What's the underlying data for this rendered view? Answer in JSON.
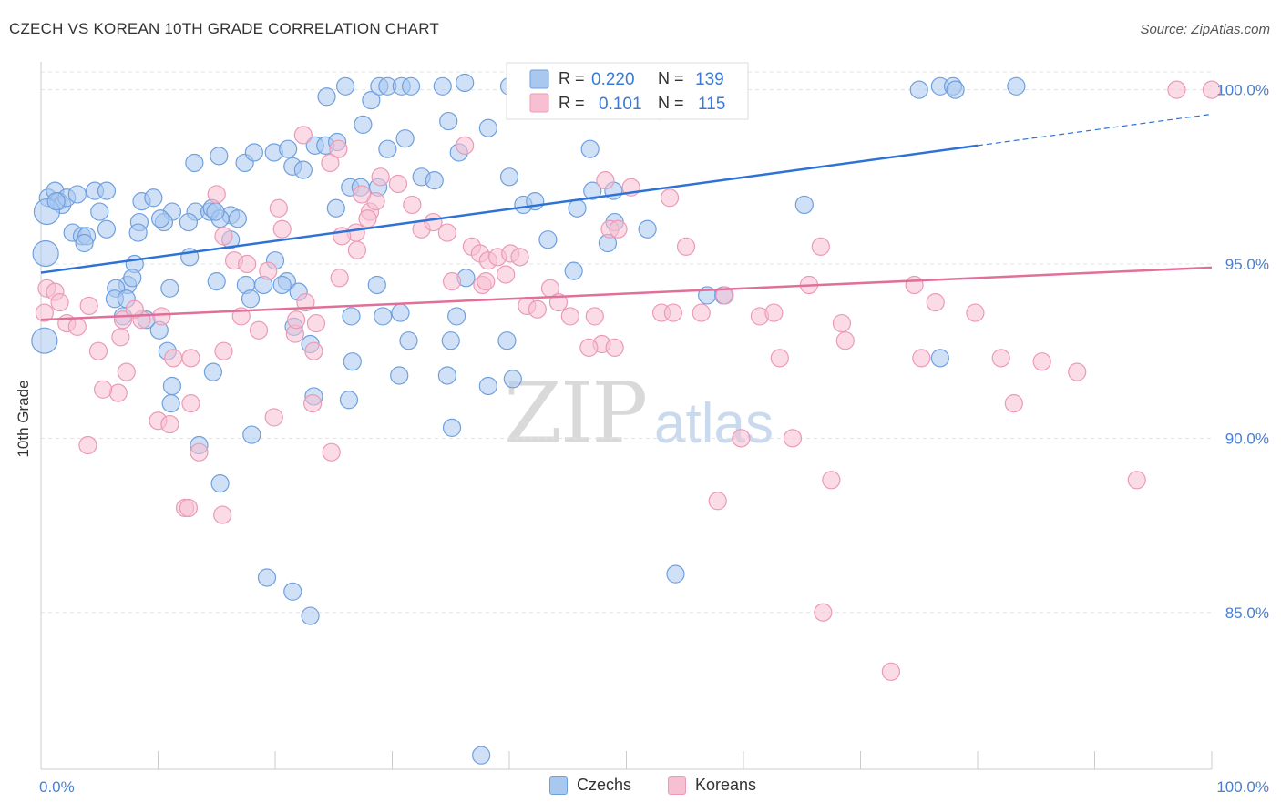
{
  "title": "CZECH VS KOREAN 10TH GRADE CORRELATION CHART",
  "source": "Source: ZipAtlas.com",
  "watermark": {
    "zip": "ZIP",
    "atlas": "atlas"
  },
  "legend": {
    "r_label": "R =",
    "n_label": "N =",
    "czech_r": "0.220",
    "czech_n": "139",
    "korean_r": "0.101",
    "korean_n": "115"
  },
  "bottom_legend": {
    "czechs": "Czechs",
    "koreans": "Koreans"
  },
  "colors": {
    "czech_fill": "#a9c8f0",
    "czech_stroke": "#6fa0de",
    "czech_line": "#2f72d6",
    "korean_fill": "#f7c0d2",
    "korean_stroke": "#eb9ab6",
    "korean_line": "#e0709a",
    "tick_text": "#4a7fcf",
    "grid": "#e3e3e3"
  },
  "chart_data": {
    "type": "scatter",
    "title": "CZECH VS KOREAN 10TH GRADE CORRELATION CHART",
    "xlabel": "",
    "ylabel": "10th Grade",
    "xlim": [
      0,
      100
    ],
    "ylim": [
      80.5,
      100.8
    ],
    "x_tick_labels": [
      "0.0%",
      "100.0%"
    ],
    "y_ticks": [
      85,
      90,
      95,
      100
    ],
    "y_tick_labels": [
      "85.0%",
      "90.0%",
      "95.0%",
      "100.0%"
    ],
    "grid": true,
    "legend_position": "top-center",
    "series": [
      {
        "name": "Czechs",
        "r": 0.22,
        "n": 139,
        "trend": {
          "x0": 0,
          "y0": 94.75,
          "x1": 80,
          "y1": 98.4,
          "dashed_to_x": 100,
          "dashed_to_y": 99.3
        },
        "points": [
          [
            0.6,
            96.9
          ],
          [
            1.2,
            97.1
          ],
          [
            1.5,
            96.8
          ],
          [
            1.8,
            96.7
          ],
          [
            2.2,
            96.9
          ],
          [
            3.1,
            97.0
          ],
          [
            4.6,
            97.1
          ],
          [
            5.6,
            97.1
          ],
          [
            8.6,
            96.8
          ],
          [
            9.6,
            96.9
          ],
          [
            0.5,
            96.5
          ],
          [
            1.3,
            96.8
          ],
          [
            5.0,
            96.5
          ],
          [
            11.2,
            96.5
          ],
          [
            13.2,
            96.5
          ],
          [
            14.4,
            96.5
          ],
          [
            16.2,
            96.4
          ],
          [
            16.8,
            96.3
          ],
          [
            0.4,
            95.3
          ],
          [
            0.3,
            92.8
          ],
          [
            2.7,
            95.9
          ],
          [
            3.5,
            95.8
          ],
          [
            3.9,
            95.8
          ],
          [
            5.6,
            96.0
          ],
          [
            8.4,
            96.2
          ],
          [
            10.5,
            96.2
          ],
          [
            12.6,
            96.2
          ],
          [
            14.6,
            96.6
          ],
          [
            15.3,
            96.3
          ],
          [
            26.4,
            97.2
          ],
          [
            8.3,
            95.9
          ],
          [
            10.2,
            96.3
          ],
          [
            3.7,
            95.6
          ],
          [
            8.0,
            95.0
          ],
          [
            12.7,
            95.2
          ],
          [
            20.0,
            95.1
          ],
          [
            7.4,
            94.4
          ],
          [
            6.4,
            94.3
          ],
          [
            7.8,
            94.6
          ],
          [
            15.0,
            94.5
          ],
          [
            17.5,
            94.4
          ],
          [
            19.0,
            94.4
          ],
          [
            21.0,
            94.5
          ],
          [
            11.0,
            94.3
          ],
          [
            6.3,
            94.0
          ],
          [
            7.3,
            94.0
          ],
          [
            17.9,
            94.0
          ],
          [
            22.0,
            94.2
          ],
          [
            28.7,
            94.4
          ],
          [
            36.3,
            94.6
          ],
          [
            7.0,
            93.5
          ],
          [
            10.1,
            93.1
          ],
          [
            9.0,
            93.4
          ],
          [
            21.6,
            93.2
          ],
          [
            26.5,
            93.5
          ],
          [
            29.2,
            93.5
          ],
          [
            30.7,
            93.6
          ],
          [
            35.5,
            93.5
          ],
          [
            10.8,
            92.5
          ],
          [
            23.0,
            92.7
          ],
          [
            26.6,
            92.2
          ],
          [
            31.4,
            92.8
          ],
          [
            35.0,
            92.8
          ],
          [
            11.2,
            91.5
          ],
          [
            14.7,
            91.9
          ],
          [
            23.3,
            91.2
          ],
          [
            30.6,
            91.8
          ],
          [
            34.7,
            91.8
          ],
          [
            38.2,
            91.5
          ],
          [
            40.3,
            91.7
          ],
          [
            11.1,
            91.0
          ],
          [
            26.3,
            91.1
          ],
          [
            35.1,
            90.3
          ],
          [
            13.5,
            89.8
          ],
          [
            18.0,
            90.1
          ],
          [
            15.3,
            88.7
          ],
          [
            19.3,
            86.0
          ],
          [
            21.5,
            85.6
          ],
          [
            23.0,
            84.9
          ],
          [
            37.6,
            80.9
          ],
          [
            13.1,
            97.9
          ],
          [
            15.2,
            98.1
          ],
          [
            17.4,
            97.9
          ],
          [
            18.2,
            98.2
          ],
          [
            19.9,
            98.2
          ],
          [
            21.1,
            98.3
          ],
          [
            21.5,
            97.8
          ],
          [
            22.4,
            97.7
          ],
          [
            23.4,
            98.4
          ],
          [
            24.3,
            98.4
          ],
          [
            25.3,
            98.5
          ],
          [
            27.3,
            97.2
          ],
          [
            28.8,
            97.2
          ],
          [
            29.6,
            98.3
          ],
          [
            31.1,
            98.6
          ],
          [
            32.5,
            97.5
          ],
          [
            33.6,
            97.4
          ],
          [
            34.8,
            99.1
          ],
          [
            35.7,
            98.2
          ],
          [
            38.2,
            98.9
          ],
          [
            40.0,
            97.5
          ],
          [
            41.2,
            96.7
          ],
          [
            45.8,
            96.6
          ],
          [
            46.9,
            98.3
          ],
          [
            47.1,
            97.1
          ],
          [
            48.4,
            95.6
          ],
          [
            49.0,
            96.2
          ],
          [
            56.9,
            94.1
          ],
          [
            58.3,
            94.1
          ],
          [
            65.2,
            96.7
          ],
          [
            76.8,
            92.3
          ],
          [
            43.3,
            95.7
          ],
          [
            27.5,
            99.0
          ],
          [
            24.4,
            99.8
          ],
          [
            26.0,
            100.1
          ],
          [
            28.2,
            99.7
          ],
          [
            28.9,
            100.1
          ],
          [
            29.6,
            100.1
          ],
          [
            30.8,
            100.1
          ],
          [
            31.6,
            100.1
          ],
          [
            34.3,
            100.1
          ],
          [
            36.2,
            100.2
          ],
          [
            40.0,
            100.1
          ],
          [
            45.5,
            100.0
          ],
          [
            46.1,
            100.1
          ],
          [
            47.0,
            100.1
          ],
          [
            48.0,
            100.0
          ],
          [
            49.5,
            100.0
          ],
          [
            50.3,
            100.0
          ],
          [
            51.1,
            100.1
          ],
          [
            52.5,
            100.1
          ],
          [
            54.4,
            100.0
          ],
          [
            75.0,
            100.0
          ],
          [
            76.8,
            100.1
          ],
          [
            77.9,
            100.1
          ],
          [
            78.1,
            100.0
          ],
          [
            83.3,
            100.1
          ],
          [
            52.9,
            99.4
          ],
          [
            43.0,
            99.6
          ],
          [
            39.8,
            92.8
          ],
          [
            42.2,
            96.8
          ],
          [
            48.9,
            97.1
          ],
          [
            51.8,
            96.0
          ],
          [
            45.5,
            94.8
          ],
          [
            16.2,
            95.7
          ],
          [
            20.6,
            94.4
          ],
          [
            25.2,
            96.6
          ],
          [
            14.9,
            96.5
          ],
          [
            54.2,
            86.1
          ]
        ]
      },
      {
        "name": "Koreans",
        "r": 0.101,
        "n": 115,
        "trend": {
          "x0": 0,
          "y0": 93.4,
          "x1": 100,
          "y1": 94.9
        },
        "points": [
          [
            0.5,
            94.3
          ],
          [
            1.2,
            94.2
          ],
          [
            1.6,
            93.9
          ],
          [
            0.3,
            93.6
          ],
          [
            2.2,
            93.3
          ],
          [
            3.1,
            93.2
          ],
          [
            4.1,
            93.8
          ],
          [
            4.9,
            92.5
          ],
          [
            7.0,
            93.4
          ],
          [
            8.6,
            93.4
          ],
          [
            6.8,
            92.9
          ],
          [
            7.3,
            91.9
          ],
          [
            6.6,
            91.3
          ],
          [
            5.3,
            91.4
          ],
          [
            4.0,
            89.8
          ],
          [
            8.0,
            93.7
          ],
          [
            10.3,
            93.5
          ],
          [
            11.3,
            92.3
          ],
          [
            12.8,
            92.3
          ],
          [
            12.8,
            91.0
          ],
          [
            10.0,
            90.5
          ],
          [
            11.0,
            90.4
          ],
          [
            13.5,
            89.6
          ],
          [
            12.3,
            88.0
          ],
          [
            12.6,
            88.0
          ],
          [
            15.5,
            87.8
          ],
          [
            15.6,
            92.5
          ],
          [
            17.1,
            93.5
          ],
          [
            18.6,
            93.1
          ],
          [
            19.9,
            90.6
          ],
          [
            21.7,
            93.0
          ],
          [
            21.8,
            93.4
          ],
          [
            22.6,
            93.9
          ],
          [
            23.5,
            93.3
          ],
          [
            23.2,
            91.0
          ],
          [
            24.8,
            89.6
          ],
          [
            25.5,
            94.6
          ],
          [
            26.9,
            95.9
          ],
          [
            28.1,
            96.5
          ],
          [
            28.6,
            96.8
          ],
          [
            27.4,
            97.0
          ],
          [
            29.0,
            97.5
          ],
          [
            30.5,
            97.3
          ],
          [
            31.7,
            96.7
          ],
          [
            32.5,
            96.0
          ],
          [
            33.5,
            96.2
          ],
          [
            34.7,
            95.9
          ],
          [
            35.1,
            94.5
          ],
          [
            36.8,
            95.5
          ],
          [
            37.5,
            95.3
          ],
          [
            38.2,
            95.1
          ],
          [
            39.0,
            95.2
          ],
          [
            40.1,
            95.3
          ],
          [
            40.9,
            95.2
          ],
          [
            37.7,
            94.4
          ],
          [
            38.0,
            94.5
          ],
          [
            41.5,
            93.8
          ],
          [
            42.4,
            93.7
          ],
          [
            43.5,
            94.3
          ],
          [
            45.2,
            93.5
          ],
          [
            47.3,
            93.5
          ],
          [
            48.6,
            96.0
          ],
          [
            49.3,
            96.0
          ],
          [
            48.2,
            97.4
          ],
          [
            50.4,
            97.2
          ],
          [
            53.7,
            96.9
          ],
          [
            47.9,
            92.7
          ],
          [
            49.0,
            92.6
          ],
          [
            53.0,
            93.6
          ],
          [
            54.0,
            93.6
          ],
          [
            55.1,
            95.5
          ],
          [
            56.4,
            93.6
          ],
          [
            58.4,
            94.1
          ],
          [
            61.4,
            93.5
          ],
          [
            62.6,
            93.6
          ],
          [
            63.1,
            92.3
          ],
          [
            64.2,
            90.0
          ],
          [
            65.6,
            94.4
          ],
          [
            66.6,
            95.5
          ],
          [
            68.7,
            92.8
          ],
          [
            68.4,
            93.3
          ],
          [
            59.8,
            90.0
          ],
          [
            57.8,
            88.2
          ],
          [
            66.8,
            85.0
          ],
          [
            72.6,
            83.3
          ],
          [
            67.5,
            88.8
          ],
          [
            74.6,
            94.4
          ],
          [
            75.2,
            92.3
          ],
          [
            76.4,
            93.9
          ],
          [
            79.8,
            93.6
          ],
          [
            82.0,
            92.3
          ],
          [
            83.1,
            91.0
          ],
          [
            85.5,
            92.2
          ],
          [
            88.5,
            91.9
          ],
          [
            93.6,
            88.8
          ],
          [
            97.0,
            100.0
          ],
          [
            100.0,
            100.0
          ],
          [
            39.7,
            94.7
          ],
          [
            44.2,
            93.9
          ],
          [
            46.8,
            92.6
          ],
          [
            27.9,
            96.3
          ],
          [
            23.3,
            92.5
          ],
          [
            25.7,
            95.8
          ],
          [
            20.3,
            96.6
          ],
          [
            15.0,
            97.0
          ],
          [
            15.6,
            95.8
          ],
          [
            16.5,
            95.1
          ],
          [
            17.6,
            95.0
          ],
          [
            19.4,
            94.8
          ],
          [
            20.6,
            96.0
          ],
          [
            22.4,
            98.7
          ],
          [
            24.7,
            97.9
          ],
          [
            25.4,
            98.3
          ],
          [
            27.0,
            95.4
          ],
          [
            36.2,
            98.4
          ]
        ]
      }
    ]
  }
}
